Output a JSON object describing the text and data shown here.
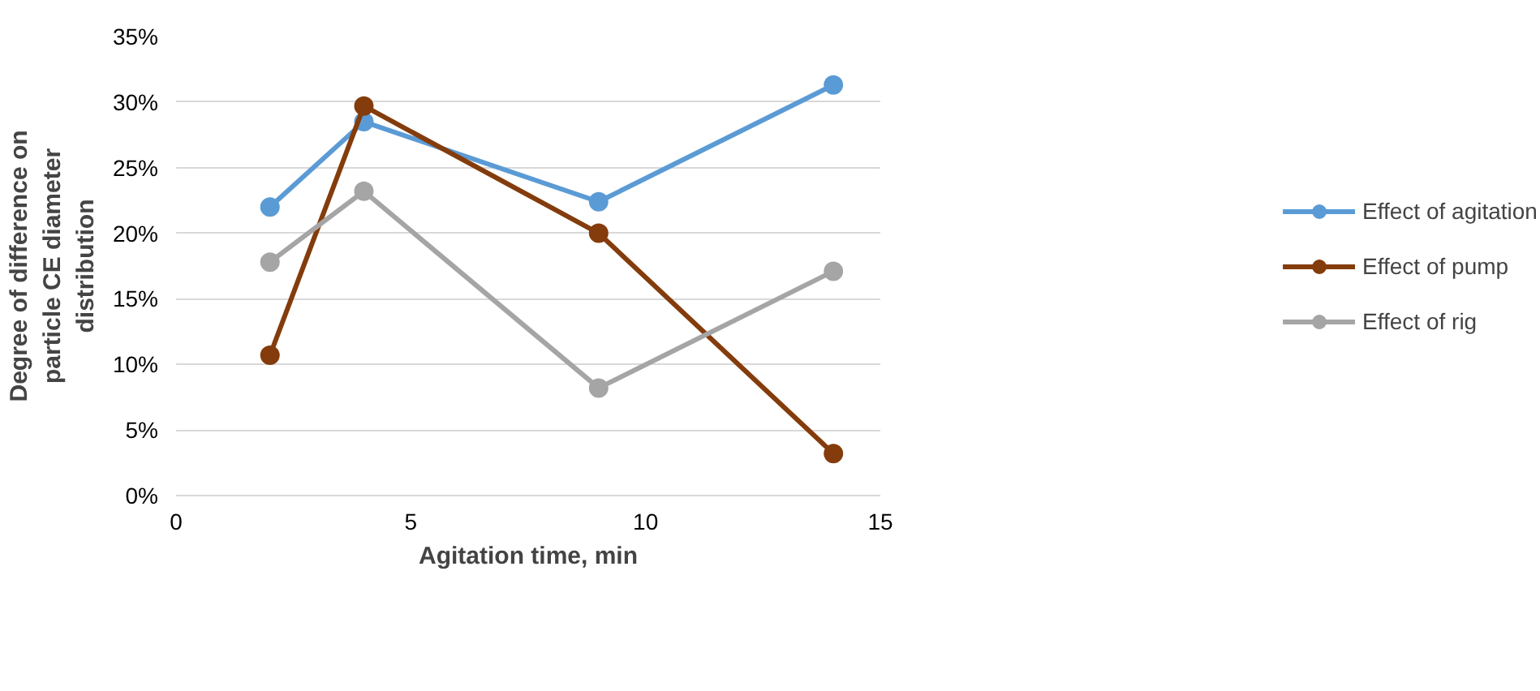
{
  "chart_data": {
    "type": "line",
    "xlabel": "Agitation time, min",
    "ylabel": "Degree of difference on particle CE diameter distribution",
    "x": [
      2,
      4,
      9,
      14
    ],
    "series": [
      {
        "name": "Effect of agitation",
        "color": "#5b9bd5",
        "values": [
          22.0,
          28.5,
          22.4,
          31.3
        ]
      },
      {
        "name": "Effect of pump",
        "color": "#843c0c",
        "values": [
          10.7,
          29.7,
          20.0,
          3.2
        ]
      },
      {
        "name": "Effect of rig",
        "color": "#a5a5a5",
        "values": [
          17.8,
          23.2,
          8.2,
          17.1
        ]
      }
    ],
    "xlim": [
      0,
      15
    ],
    "xticks": [
      0,
      5,
      10,
      15
    ],
    "ylim": [
      0,
      35
    ],
    "yticks": [
      {
        "value": 0,
        "label": "0%"
      },
      {
        "value": 5,
        "label": "5%"
      },
      {
        "value": 10,
        "label": "10%"
      },
      {
        "value": 15,
        "label": "15%"
      },
      {
        "value": 20,
        "label": "20%"
      },
      {
        "value": 25,
        "label": "25%"
      },
      {
        "value": 30,
        "label": "30%"
      },
      {
        "value": 35,
        "label": "35%"
      }
    ],
    "grid": "y",
    "legend": "right",
    "marker": "circle",
    "line_style": "solid"
  }
}
